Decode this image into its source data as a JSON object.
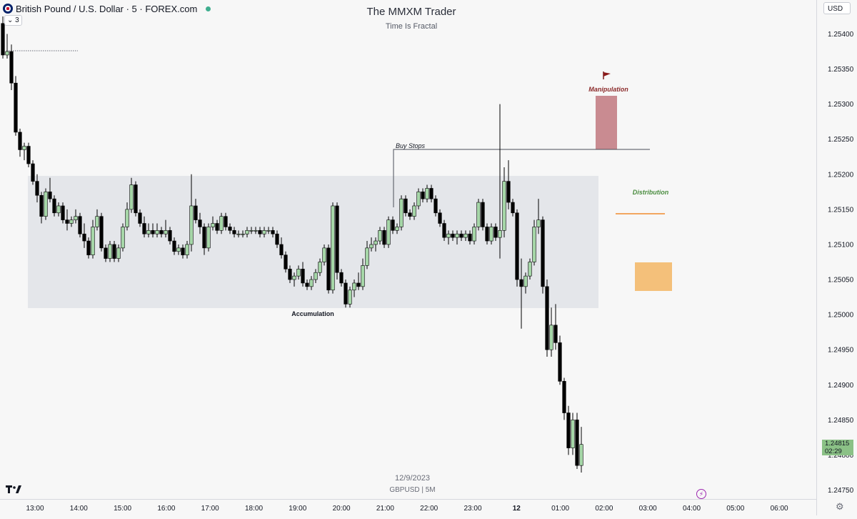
{
  "header": {
    "symbol_name": "British Pound / U.S. Dollar · 5 · FOREX.com",
    "indicator_count": "3",
    "title": "The MMXM Trader",
    "subtitle": "Time Is Fractal",
    "currency": "USD"
  },
  "footer": {
    "date": "12/9/2023",
    "symbol": "GBPUSD | 5M"
  },
  "colors": {
    "background": "#f7f7f7",
    "bull_candle": "#a5d6a7",
    "bear_candle": "#000000",
    "accumulation_zone": "#e4e6ea",
    "manipulation_zone": "#c98b91",
    "distribution_zone": "#f4c07a",
    "level_line": "#f08c2e",
    "price_tag": "#8bc186"
  },
  "price_tag": {
    "price": "1.24815",
    "countdown": "02:29"
  },
  "chart_data": {
    "type": "candlestick",
    "interval": "5m",
    "ylim": [
      1.2472,
      1.2543
    ],
    "price_ticks": [
      "1.25400",
      "1.25350",
      "1.25300",
      "1.25250",
      "1.25200",
      "1.25150",
      "1.25100",
      "1.25050",
      "1.25000",
      "1.24950",
      "1.24900",
      "1.24850",
      "1.24800",
      "1.24750"
    ],
    "time_ticks": [
      "13:00",
      "14:00",
      "15:00",
      "16:00",
      "17:00",
      "18:00",
      "19:00",
      "20:00",
      "21:00",
      "22:00",
      "23:00",
      "12",
      "01:00",
      "02:00",
      "03:00",
      "04:00",
      "05:00",
      "06:00"
    ],
    "time_tick_bold": "12",
    "candles": [
      [
        1.25415,
        1.25425,
        1.25365,
        1.2537
      ],
      [
        1.2537,
        1.254,
        1.25365,
        1.25375
      ],
      [
        1.25375,
        1.25385,
        1.2532,
        1.2533
      ],
      [
        1.2533,
        1.2534,
        1.25255,
        1.2526
      ],
      [
        1.2526,
        1.25265,
        1.25225,
        1.25235
      ],
      [
        1.25235,
        1.25245,
        1.2522,
        1.2524
      ],
      [
        1.2524,
        1.25245,
        1.2521,
        1.25215
      ],
      [
        1.25215,
        1.2522,
        1.25185,
        1.2519
      ],
      [
        1.2519,
        1.252,
        1.2516,
        1.2517
      ],
      [
        1.2517,
        1.25175,
        1.2513,
        1.2514
      ],
      [
        1.2514,
        1.2518,
        1.25135,
        1.25175
      ],
      [
        1.25175,
        1.25195,
        1.2516,
        1.25165
      ],
      [
        1.25165,
        1.2517,
        1.2514,
        1.25145
      ],
      [
        1.25145,
        1.2516,
        1.2514,
        1.25155
      ],
      [
        1.25155,
        1.2516,
        1.2513,
        1.25135
      ],
      [
        1.25135,
        1.2515,
        1.2512,
        1.2513
      ],
      [
        1.2513,
        1.2514,
        1.25125,
        1.25135
      ],
      [
        1.25135,
        1.2515,
        1.2513,
        1.2514
      ],
      [
        1.2514,
        1.25145,
        1.2511,
        1.25115
      ],
      [
        1.25115,
        1.2513,
        1.25095,
        1.25105
      ],
      [
        1.25105,
        1.2511,
        1.2508,
        1.25085
      ],
      [
        1.25085,
        1.25135,
        1.2508,
        1.25125
      ],
      [
        1.25125,
        1.2515,
        1.2512,
        1.2514
      ],
      [
        1.2514,
        1.25145,
        1.2509,
        1.25095
      ],
      [
        1.25095,
        1.251,
        1.25075,
        1.2508
      ],
      [
        1.2508,
        1.25105,
        1.25075,
        1.251
      ],
      [
        1.251,
        1.25105,
        1.25075,
        1.2508
      ],
      [
        1.2508,
        1.251,
        1.25075,
        1.25095
      ],
      [
        1.25095,
        1.2513,
        1.2509,
        1.25125
      ],
      [
        1.25125,
        1.2516,
        1.2512,
        1.2515
      ],
      [
        1.2515,
        1.25195,
        1.25145,
        1.25185
      ],
      [
        1.25185,
        1.2519,
        1.2514,
        1.25145
      ],
      [
        1.25145,
        1.2515,
        1.25125,
        1.2513
      ],
      [
        1.2513,
        1.2514,
        1.2511,
        1.25115
      ],
      [
        1.25115,
        1.2513,
        1.2511,
        1.2512
      ],
      [
        1.2512,
        1.2513,
        1.2511,
        1.25115
      ],
      [
        1.25115,
        1.2513,
        1.2511,
        1.2512
      ],
      [
        1.2512,
        1.25125,
        1.2511,
        1.25115
      ],
      [
        1.25115,
        1.25135,
        1.2511,
        1.2512
      ],
      [
        1.2512,
        1.25125,
        1.251,
        1.25105
      ],
      [
        1.25105,
        1.2511,
        1.25085,
        1.2509
      ],
      [
        1.2509,
        1.251,
        1.25085,
        1.25095
      ],
      [
        1.25095,
        1.251,
        1.2508,
        1.25085
      ],
      [
        1.25085,
        1.25105,
        1.2508,
        1.251
      ],
      [
        1.251,
        1.252,
        1.2509,
        1.25155
      ],
      [
        1.25155,
        1.25165,
        1.2513,
        1.25135
      ],
      [
        1.25135,
        1.25145,
        1.25115,
        1.25125
      ],
      [
        1.25125,
        1.2513,
        1.25085,
        1.25095
      ],
      [
        1.25095,
        1.2513,
        1.2509,
        1.25125
      ],
      [
        1.25125,
        1.2514,
        1.2512,
        1.2513
      ],
      [
        1.2513,
        1.25135,
        1.25115,
        1.2512
      ],
      [
        1.2512,
        1.25145,
        1.25115,
        1.2514
      ],
      [
        1.2514,
        1.25145,
        1.2512,
        1.25125
      ],
      [
        1.25125,
        1.2513,
        1.25115,
        1.2512
      ],
      [
        1.2512,
        1.25125,
        1.2511,
        1.25115
      ],
      [
        1.25115,
        1.2512,
        1.2511,
        1.25115
      ],
      [
        1.25115,
        1.2512,
        1.2511,
        1.25115
      ],
      [
        1.25115,
        1.25125,
        1.2511,
        1.2512
      ],
      [
        1.2512,
        1.25125,
        1.25115,
        1.2512
      ],
      [
        1.2512,
        1.25125,
        1.25115,
        1.2512
      ],
      [
        1.2512,
        1.25125,
        1.2511,
        1.25115
      ],
      [
        1.25115,
        1.25125,
        1.2511,
        1.2512
      ],
      [
        1.2512,
        1.25125,
        1.25115,
        1.2512
      ],
      [
        1.2512,
        1.25125,
        1.2511,
        1.25115
      ],
      [
        1.25115,
        1.2512,
        1.25095,
        1.251
      ],
      [
        1.251,
        1.2511,
        1.2508,
        1.25085
      ],
      [
        1.25085,
        1.2509,
        1.2506,
        1.25065
      ],
      [
        1.25065,
        1.2507,
        1.25045,
        1.2505
      ],
      [
        1.2505,
        1.2506,
        1.2504,
        1.25055
      ],
      [
        1.25055,
        1.2507,
        1.2505,
        1.25065
      ],
      [
        1.25065,
        1.25075,
        1.2504,
        1.25045
      ],
      [
        1.25045,
        1.2505,
        1.25035,
        1.2504
      ],
      [
        1.2504,
        1.25055,
        1.25035,
        1.2505
      ],
      [
        1.2505,
        1.25065,
        1.25045,
        1.2506
      ],
      [
        1.2506,
        1.2508,
        1.25055,
        1.25075
      ],
      [
        1.25075,
        1.251,
        1.2507,
        1.25095
      ],
      [
        1.25095,
        1.251,
        1.2503,
        1.25035
      ],
      [
        1.25035,
        1.2516,
        1.2503,
        1.25155
      ],
      [
        1.25155,
        1.2516,
        1.2505,
        1.2506
      ],
      [
        1.2506,
        1.25065,
        1.2504,
        1.25045
      ],
      [
        1.25045,
        1.2505,
        1.2501,
        1.25015
      ],
      [
        1.25015,
        1.2504,
        1.2501,
        1.25035
      ],
      [
        1.25035,
        1.2505,
        1.25025,
        1.25045
      ],
      [
        1.25045,
        1.2506,
        1.25035,
        1.2504
      ],
      [
        1.2504,
        1.2508,
        1.25035,
        1.2507
      ],
      [
        1.2507,
        1.25105,
        1.25065,
        1.25095
      ],
      [
        1.25095,
        1.2511,
        1.2509,
        1.251
      ],
      [
        1.251,
        1.2511,
        1.2509,
        1.25105
      ],
      [
        1.25105,
        1.25125,
        1.251,
        1.2512
      ],
      [
        1.2512,
        1.25125,
        1.25095,
        1.251
      ],
      [
        1.251,
        1.2514,
        1.25095,
        1.25135
      ],
      [
        1.25135,
        1.2514,
        1.25115,
        1.2512
      ],
      [
        1.2512,
        1.2513,
        1.25115,
        1.25125
      ],
      [
        1.25125,
        1.2517,
        1.2512,
        1.25165
      ],
      [
        1.25165,
        1.2517,
        1.2514,
        1.25145
      ],
      [
        1.25145,
        1.2515,
        1.25135,
        1.2514
      ],
      [
        1.2514,
        1.2516,
        1.25135,
        1.25155
      ],
      [
        1.25155,
        1.2518,
        1.2515,
        1.25175
      ],
      [
        1.25175,
        1.2518,
        1.2516,
        1.25165
      ],
      [
        1.25165,
        1.25185,
        1.2516,
        1.2518
      ],
      [
        1.2518,
        1.25185,
        1.2516,
        1.25165
      ],
      [
        1.25165,
        1.2517,
        1.2514,
        1.25145
      ],
      [
        1.25145,
        1.2515,
        1.25125,
        1.2513
      ],
      [
        1.2513,
        1.25135,
        1.25105,
        1.2511
      ],
      [
        1.2511,
        1.2512,
        1.251,
        1.25115
      ],
      [
        1.25115,
        1.2512,
        1.25105,
        1.2511
      ],
      [
        1.2511,
        1.2512,
        1.251,
        1.25115
      ],
      [
        1.25115,
        1.2512,
        1.25105,
        1.2511
      ],
      [
        1.2511,
        1.2512,
        1.25105,
        1.25115
      ],
      [
        1.25115,
        1.2512,
        1.251,
        1.25105
      ],
      [
        1.25105,
        1.2513,
        1.251,
        1.25125
      ],
      [
        1.25125,
        1.25165,
        1.2512,
        1.2516
      ],
      [
        1.2516,
        1.25165,
        1.2512,
        1.25125
      ],
      [
        1.25125,
        1.2513,
        1.251,
        1.25105
      ],
      [
        1.25105,
        1.2513,
        1.251,
        1.25125
      ],
      [
        1.25125,
        1.2513,
        1.25105,
        1.2511
      ],
      [
        1.2511,
        1.253,
        1.2508,
        1.2512
      ],
      [
        1.2512,
        1.2521,
        1.2511,
        1.2519
      ],
      [
        1.2519,
        1.2522,
        1.2515,
        1.2516
      ],
      [
        1.2516,
        1.25165,
        1.2514,
        1.25145
      ],
      [
        1.25145,
        1.2515,
        1.2504,
        1.2505
      ],
      [
        1.2505,
        1.2508,
        1.2498,
        1.2504
      ],
      [
        1.2504,
        1.2506,
        1.2503,
        1.25055
      ],
      [
        1.25055,
        1.2508,
        1.2505,
        1.25075
      ],
      [
        1.25075,
        1.25135,
        1.2507,
        1.25125
      ],
      [
        1.25125,
        1.25165,
        1.25115,
        1.25135
      ],
      [
        1.25135,
        1.2514,
        1.2503,
        1.2504
      ],
      [
        1.2504,
        1.2505,
        1.2494,
        1.2495
      ],
      [
        1.2495,
        1.2501,
        1.2494,
        1.24985
      ],
      [
        1.24985,
        1.25015,
        1.2495,
        1.2496
      ],
      [
        1.2496,
        1.2497,
        1.249,
        1.24905
      ],
      [
        1.24905,
        1.2491,
        1.2485,
        1.2486
      ],
      [
        1.2486,
        1.2487,
        1.248,
        1.2481
      ],
      [
        1.2481,
        1.2486,
        1.248,
        1.2485
      ],
      [
        1.2485,
        1.2486,
        1.2478,
        1.24785
      ],
      [
        1.24785,
        1.2484,
        1.24775,
        1.24815
      ]
    ],
    "annotations": {
      "accumulation_label": "Accumulation",
      "buy_stops_label": "Buy Stops",
      "manipulation_label": "Manipulation",
      "distribution_label": "Distribution"
    }
  }
}
